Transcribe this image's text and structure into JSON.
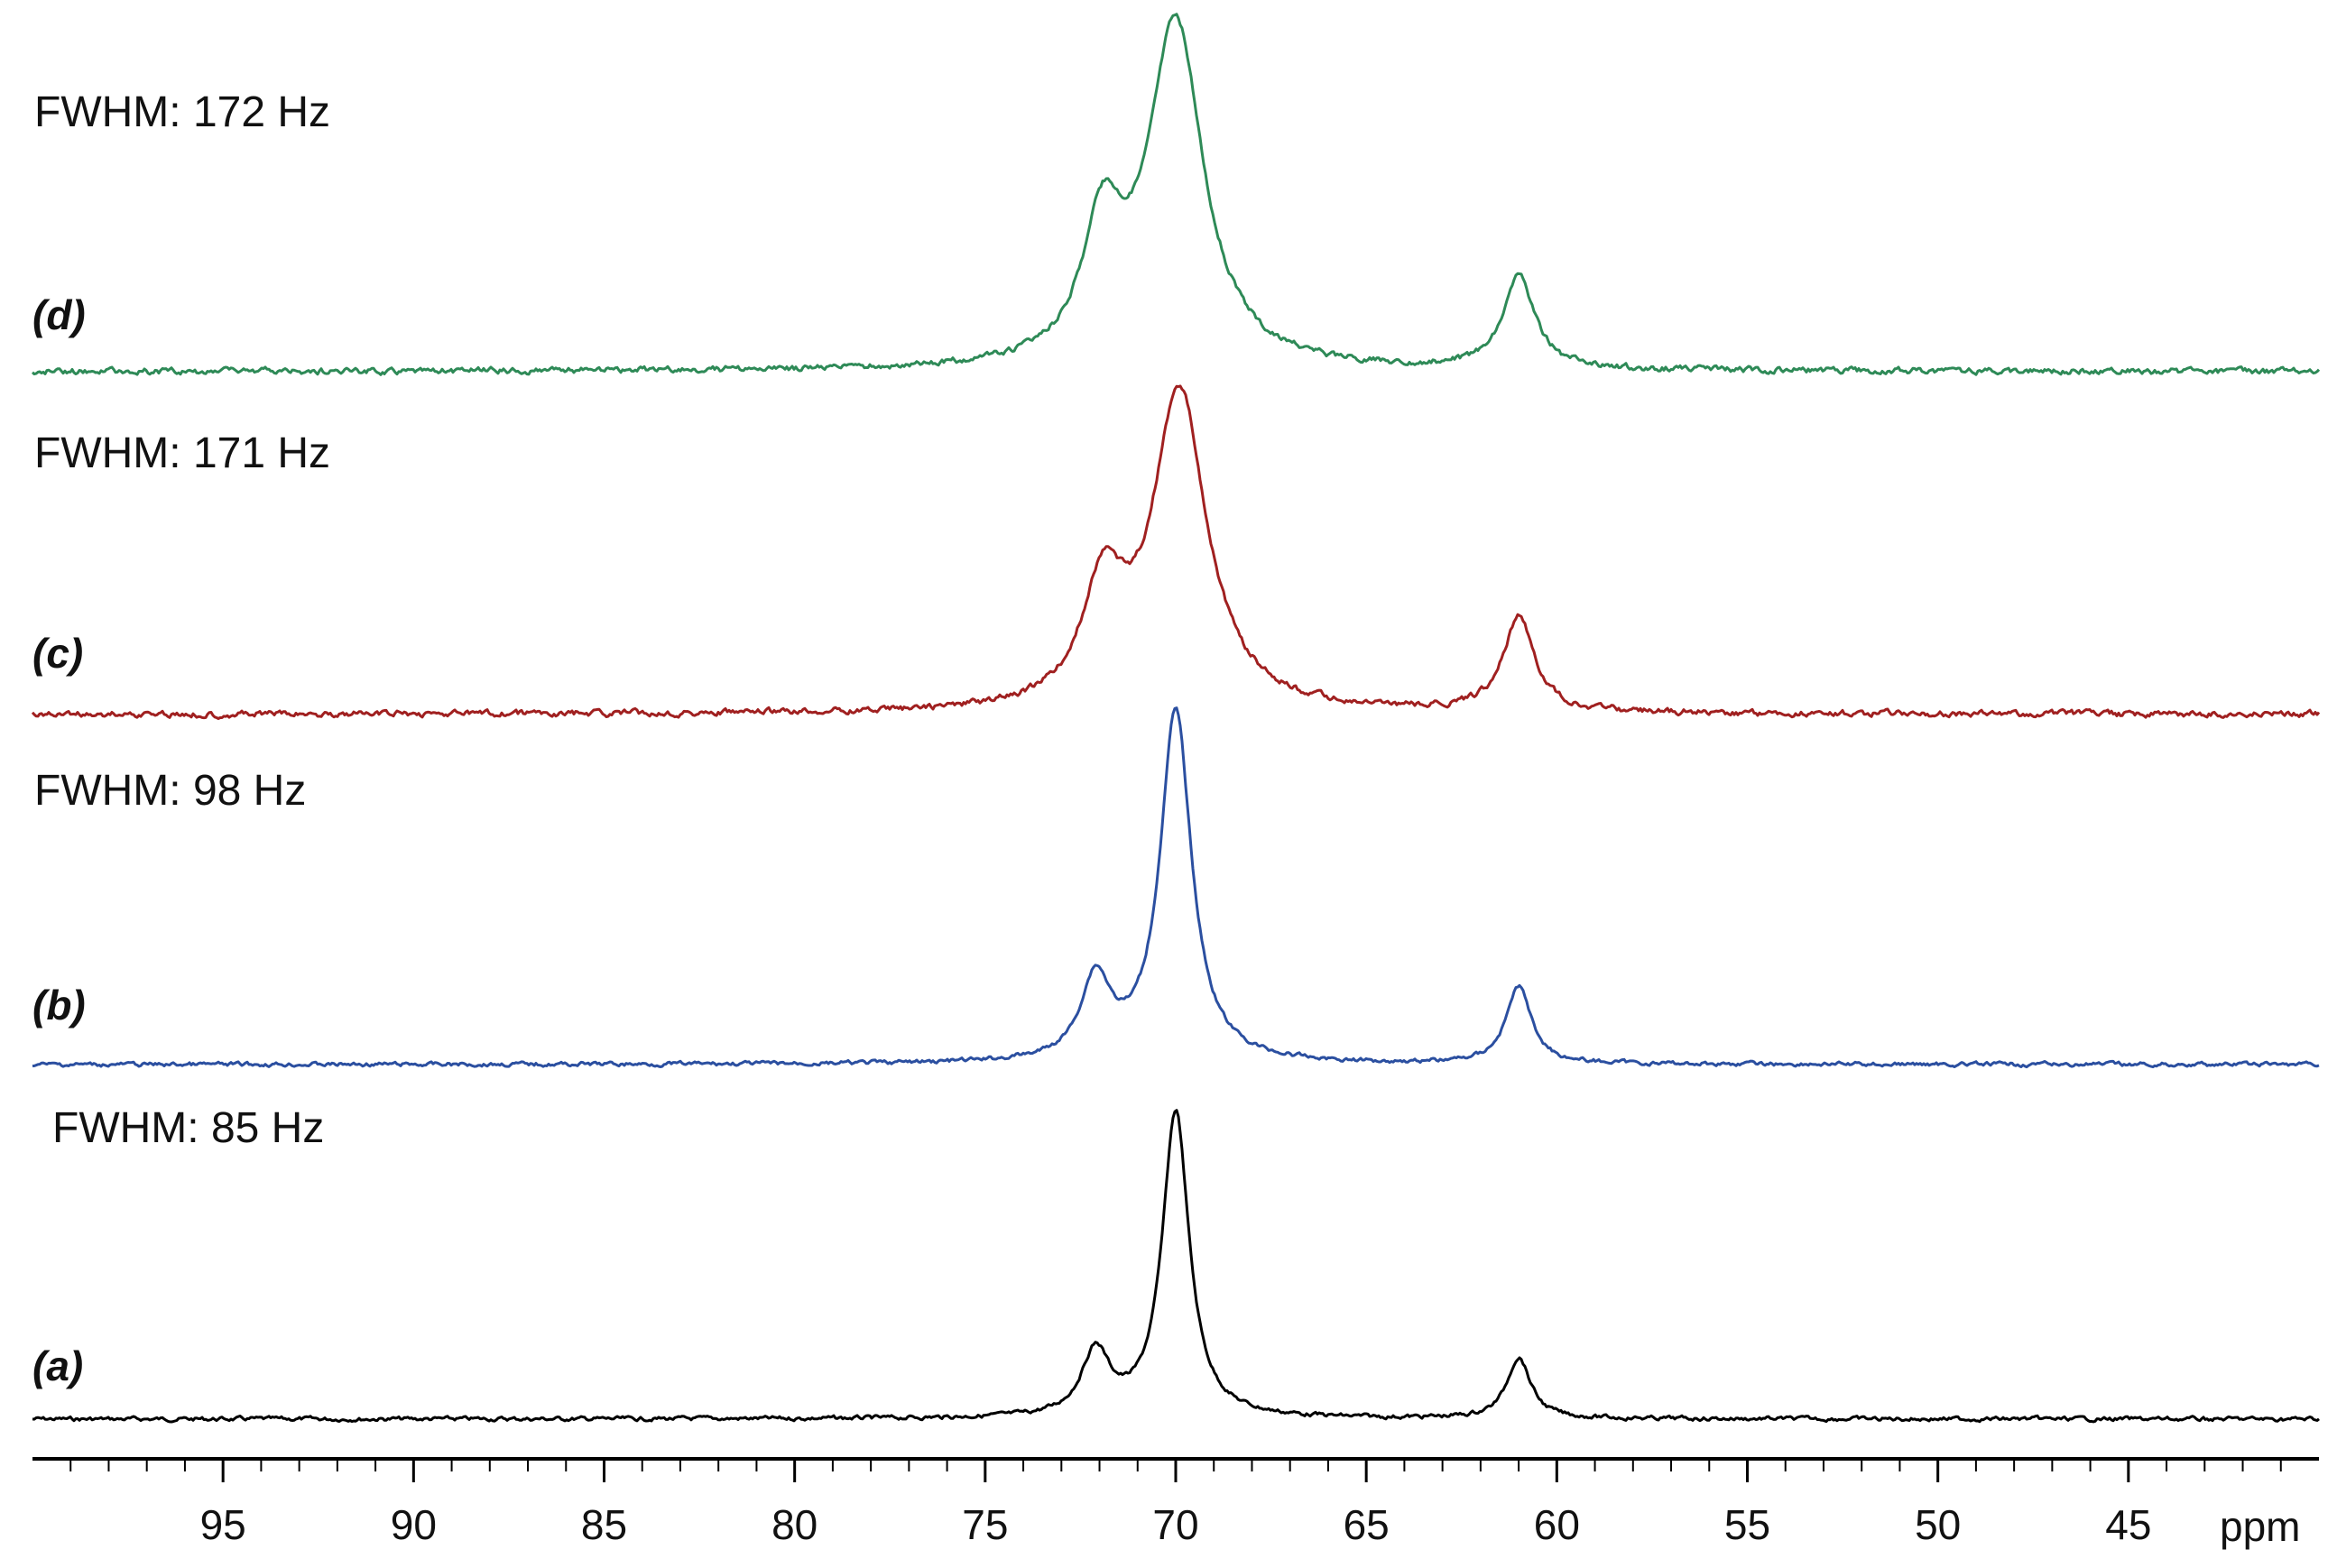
{
  "chart_data": {
    "type": "line",
    "xlabel": "ppm",
    "xlim": [
      100,
      40
    ],
    "x_reversed": true,
    "x_ticks": [
      95,
      90,
      85,
      80,
      75,
      70,
      65,
      60,
      55,
      50,
      45
    ],
    "x_tick_labels": [
      "95",
      "90",
      "85",
      "80",
      "75",
      "70",
      "65",
      "60",
      "55",
      "50",
      "45"
    ],
    "grid": false,
    "legend": "none",
    "stacked": true,
    "series": [
      {
        "panel": "(a)",
        "annotation": "FWHM: 85 Hz",
        "color": "#000000",
        "peaks": [
          {
            "ppm": 72.1,
            "height": 0.21,
            "width": 0.9
          },
          {
            "ppm": 70.0,
            "height": 1.0,
            "width": 0.85
          },
          {
            "ppm": 61.0,
            "height": 0.2,
            "width": 0.75
          }
        ]
      },
      {
        "panel": "(b)",
        "annotation": "FWHM: 98 Hz",
        "color": "#2b4fa0",
        "peaks": [
          {
            "ppm": 72.1,
            "height": 0.23,
            "width": 0.95
          },
          {
            "ppm": 70.0,
            "height": 1.0,
            "width": 1.0
          },
          {
            "ppm": 61.0,
            "height": 0.22,
            "width": 0.8
          }
        ]
      },
      {
        "panel": "(c)",
        "annotation": "FWHM: 171 Hz",
        "color": "#a02020",
        "peaks": [
          {
            "ppm": 71.9,
            "height": 0.36,
            "width": 1.3
          },
          {
            "ppm": 69.9,
            "height": 1.0,
            "width": 1.75
          },
          {
            "ppm": 61.0,
            "height": 0.3,
            "width": 1.0
          }
        ]
      },
      {
        "panel": "(d)",
        "annotation": "FWHM: 172 Hz",
        "color": "#2e8a57",
        "peaks": [
          {
            "ppm": 71.9,
            "height": 0.38,
            "width": 1.3
          },
          {
            "ppm": 70.0,
            "height": 1.0,
            "width": 1.75
          },
          {
            "ppm": 61.0,
            "height": 0.27,
            "width": 1.0
          }
        ]
      }
    ]
  }
}
